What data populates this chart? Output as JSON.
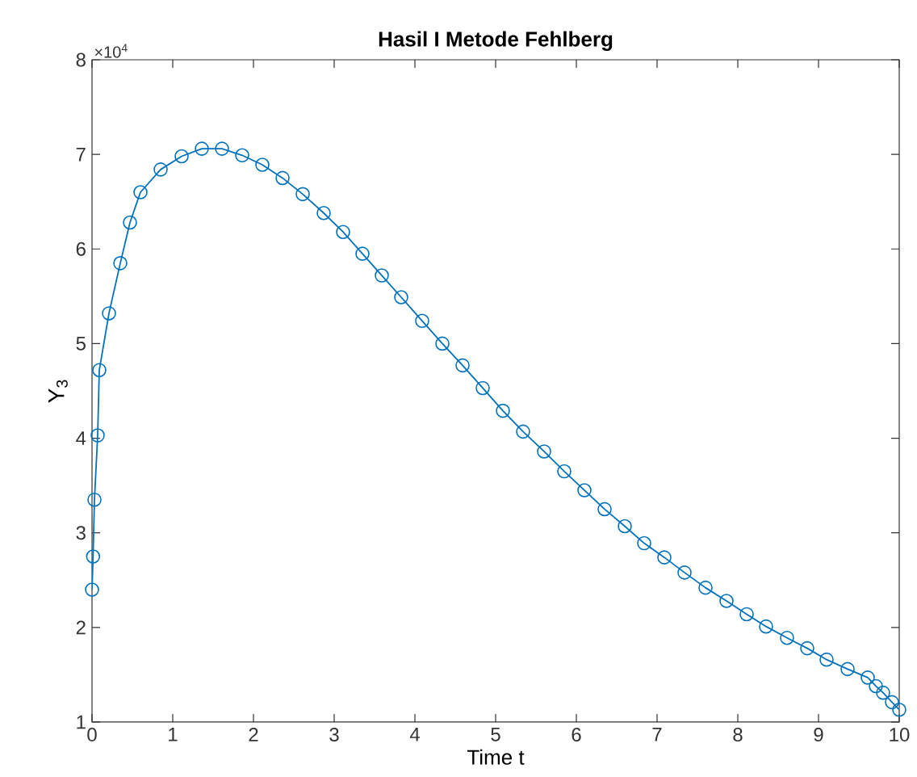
{
  "chart_data": {
    "type": "line",
    "title": "**Hasil I Metode Fehlberg**",
    "xlabel": "Time t",
    "ylabel": "Y$_{3}$",
    "annotations": [
      "×10$^{4}$"
    ],
    "x": [
      0,
      0.013,
      0.03,
      0.07,
      0.09,
      0.21,
      0.35,
      0.47,
      0.6,
      0.85,
      1.11,
      1.36,
      1.61,
      1.86,
      2.11,
      2.36,
      2.61,
      2.87,
      3.11,
      3.35,
      3.59,
      3.83,
      4.09,
      4.34,
      4.59,
      4.84,
      5.09,
      5.34,
      5.6,
      5.85,
      6.1,
      6.35,
      6.6,
      6.84,
      7.09,
      7.34,
      7.6,
      7.86,
      8.11,
      8.35,
      8.61,
      8.86,
      9.1,
      9.36,
      9.61,
      9.71,
      9.8,
      9.91,
      10.0
    ],
    "series": [
      {
        "color": "#0072bd",
        "values": [
          2.4,
          2.75,
          3.35,
          4.03,
          4.72,
          5.32,
          5.85,
          6.28,
          6.6,
          6.84,
          6.98,
          7.06,
          7.06,
          6.99,
          6.89,
          6.75,
          6.58,
          6.38,
          6.18,
          5.95,
          5.72,
          5.49,
          5.24,
          5.0,
          4.77,
          4.53,
          4.29,
          4.07,
          3.86,
          3.65,
          3.45,
          3.25,
          3.07,
          2.89,
          2.74,
          2.58,
          2.42,
          2.28,
          2.14,
          2.01,
          1.89,
          1.78,
          1.66,
          1.56,
          1.47,
          1.38,
          1.31,
          1.21,
          1.13
        ]
      }
    ],
    "xlim": [
      0,
      10
    ],
    "ylim": [
      1,
      8
    ],
    "xticks": [
      0,
      1,
      2,
      3,
      4,
      5,
      6,
      7,
      8,
      9,
      10
    ],
    "yticks": [
      1,
      2,
      3,
      4,
      5,
      6,
      7,
      8
    ],
    "marker": "circle",
    "line_style": "solid"
  }
}
